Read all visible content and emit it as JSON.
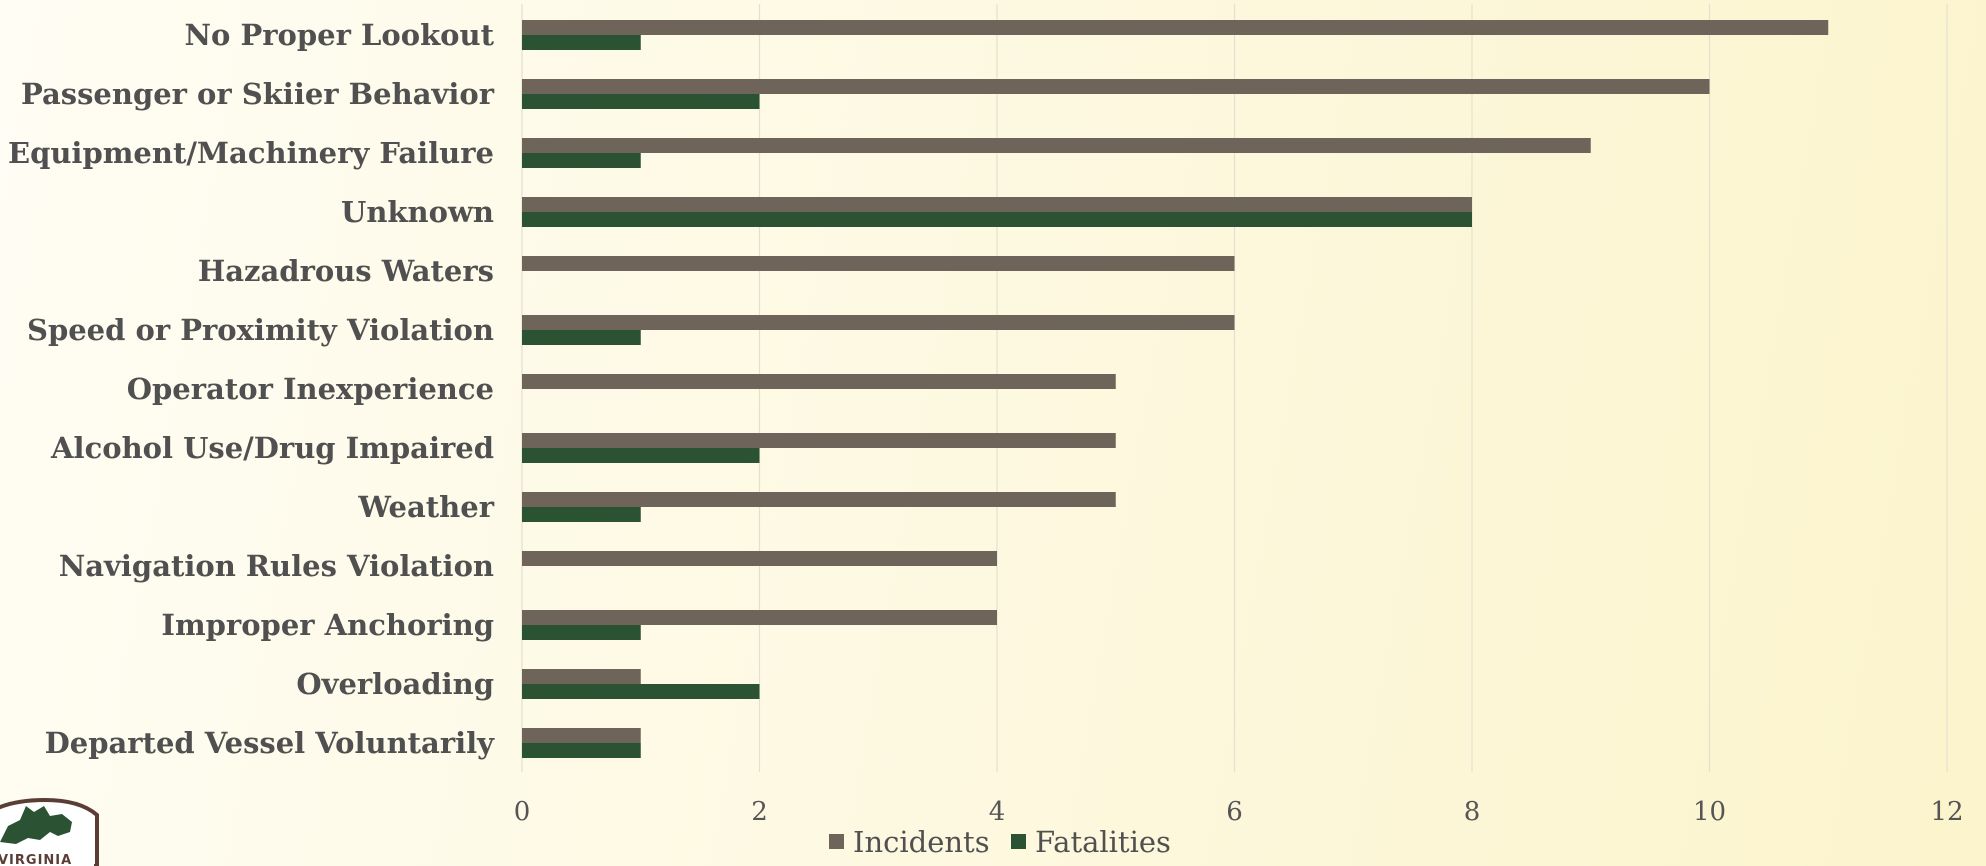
{
  "chart_data": {
    "type": "bar",
    "orientation": "horizontal",
    "categories": [
      "No Proper Lookout",
      "Passenger or Skiier Behavior",
      "Equipment/Machinery Failure",
      "Unknown",
      "Hazadrous Waters",
      "Speed or Proximity Violation",
      "Operator Inexperience",
      "Alcohol Use/Drug Impaired",
      "Weather",
      "Navigation Rules Violation",
      "Improper Anchoring",
      "Overloading",
      "Departed Vessel Voluntarily"
    ],
    "series": [
      {
        "name": "Incidents",
        "color": "#6e645a",
        "values": [
          11,
          10,
          9,
          8,
          6,
          6,
          5,
          5,
          5,
          4,
          4,
          1,
          1
        ]
      },
      {
        "name": "Fatalities",
        "color": "#2c5234",
        "values": [
          1,
          2,
          1,
          8,
          0,
          1,
          0,
          2,
          1,
          0,
          1,
          2,
          1
        ]
      }
    ],
    "xlim": [
      0,
      12
    ],
    "xticks": [
      0,
      2,
      4,
      6,
      8,
      10,
      12
    ],
    "grid": "vertical",
    "legend": "bottom-center"
  },
  "logo": {
    "text": "VIRGINIA",
    "icon": "virginia-dwr-logo-icon"
  }
}
